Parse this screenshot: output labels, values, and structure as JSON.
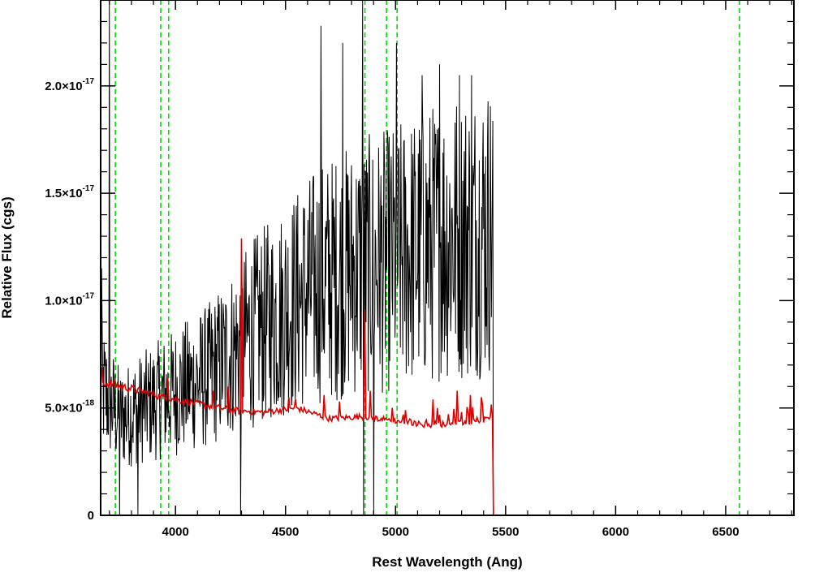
{
  "chart_data": {
    "type": "line",
    "title": "",
    "xlabel": "Rest Wavelength (Ang)",
    "ylabel": "Relative Flux (cgs)",
    "xlim": [
      3660,
      6810
    ],
    "ylim": [
      0,
      2.4e-17
    ],
    "grid": false,
    "legend": "none",
    "x_ticks": [
      {
        "value": 4000,
        "label": "4000"
      },
      {
        "value": 4500,
        "label": "4500"
      },
      {
        "value": 5000,
        "label": "5000"
      },
      {
        "value": 5500,
        "label": "5500"
      },
      {
        "value": 6000,
        "label": "6000"
      },
      {
        "value": 6500,
        "label": "6500"
      }
    ],
    "y_ticks": [
      {
        "value": 0,
        "mantissa": "0",
        "exponent": ""
      },
      {
        "value": 5e-18,
        "mantissa": "5.0×10",
        "exponent": "-18"
      },
      {
        "value": 1e-17,
        "mantissa": "1.0×10",
        "exponent": "-17"
      },
      {
        "value": 1.5e-17,
        "mantissa": "1.5×10",
        "exponent": "-17"
      },
      {
        "value": 2e-17,
        "mantissa": "2.0×10",
        "exponent": "-17"
      }
    ],
    "reference_lines": {
      "color": "#00dd00",
      "style": "dashed",
      "x": [
        3727,
        3933,
        3969,
        4861,
        4959,
        5007,
        6563
      ]
    },
    "series": [
      {
        "color": "#000000",
        "style": "noisy spectrum",
        "x_range": [
          3660,
          5445
        ],
        "points": [
          [
            3660,
            6e-18
          ],
          [
            3750,
            4.5e-18
          ],
          [
            3850,
            5e-18
          ],
          [
            3950,
            5.5e-18
          ],
          [
            4050,
            6e-18
          ],
          [
            4150,
            6.5e-18
          ],
          [
            4250,
            7.5e-18
          ],
          [
            4350,
            8.5e-18
          ],
          [
            4450,
            9.2e-18
          ],
          [
            4550,
            1e-17
          ],
          [
            4650,
            1.08e-17
          ],
          [
            4750,
            1.12e-17
          ],
          [
            4850,
            1.16e-17
          ],
          [
            4950,
            1.18e-17
          ],
          [
            5050,
            1.22e-17
          ],
          [
            5150,
            1.26e-17
          ],
          [
            5250,
            1.3e-17
          ],
          [
            5350,
            1.32e-17
          ],
          [
            5440,
            1.35e-17
          ]
        ],
        "spikes": [
          [
            3665,
            1.15e-17
          ],
          [
            3700,
            2.4e-17
          ],
          [
            3745,
            0
          ],
          [
            3830,
            0
          ],
          [
            4295,
            2.4e-17
          ],
          [
            4295,
            0
          ],
          [
            4660,
            2.28e-17
          ],
          [
            4760,
            2.2e-17
          ],
          [
            4850,
            2.4e-17
          ],
          [
            4855,
            0
          ],
          [
            4900,
            0
          ],
          [
            5005,
            2.2e-17
          ],
          [
            5120,
            2.05e-17
          ],
          [
            5200,
            2.1e-17
          ],
          [
            5290,
            2.05e-17
          ],
          [
            5345,
            2.05e-17
          ],
          [
            5445,
            0
          ]
        ]
      },
      {
        "color": "#dd0000",
        "style": "smooth spectrum",
        "x_range": [
          3660,
          6810
        ],
        "points": [
          [
            3660,
            6.2e-18
          ],
          [
            3800,
            5.9e-18
          ],
          [
            3950,
            5.5e-18
          ],
          [
            4100,
            5.2e-18
          ],
          [
            4250,
            4.9e-18
          ],
          [
            4400,
            4.8e-18
          ],
          [
            4550,
            5e-18
          ],
          [
            4700,
            4.5e-18
          ],
          [
            4850,
            4.6e-18
          ],
          [
            5000,
            4.4e-18
          ],
          [
            5150,
            4.2e-18
          ],
          [
            5300,
            4.3e-18
          ],
          [
            5440,
            4.5e-18
          ],
          [
            5445,
            0
          ],
          [
            6810,
            0
          ]
        ],
        "spikes": [
          [
            3665,
            6.9e-18
          ],
          [
            3965,
            6.4e-18
          ],
          [
            4170,
            5.8e-18
          ],
          [
            4240,
            6e-18
          ],
          [
            4300,
            1.29e-17
          ],
          [
            4515,
            5.5e-18
          ],
          [
            4545,
            5.4e-18
          ],
          [
            4675,
            5.6e-18
          ],
          [
            4745,
            5.3e-18
          ],
          [
            4860,
            9.6e-18
          ],
          [
            4885,
            5.8e-18
          ],
          [
            5170,
            5.4e-18
          ],
          [
            5280,
            5.8e-18
          ],
          [
            5340,
            5.6e-18
          ],
          [
            5390,
            5.5e-18
          ]
        ]
      }
    ]
  }
}
